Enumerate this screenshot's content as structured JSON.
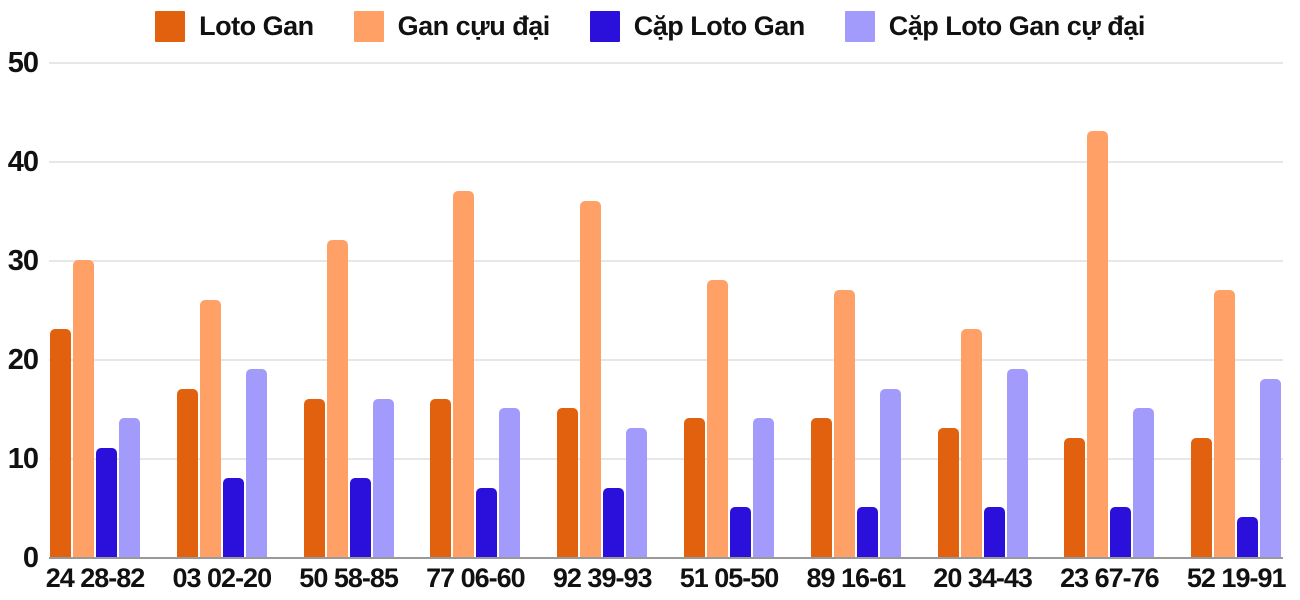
{
  "chart_data": {
    "type": "bar",
    "title": "",
    "categories": [
      "24 28-82",
      "03 02-20",
      "50 58-85",
      "77 06-60",
      "92 39-93",
      "51 05-50",
      "89 16-61",
      "20 34-43",
      "23 67-76",
      "52 19-91"
    ],
    "series": [
      {
        "name": "Loto Gan",
        "color": "#E2610F",
        "values": [
          23,
          17,
          16,
          16,
          15,
          14,
          14,
          13,
          12,
          12
        ]
      },
      {
        "name": "Gan cựu đại",
        "color": "#FFA167",
        "values": [
          30,
          26,
          32,
          37,
          36,
          28,
          27,
          23,
          43,
          27
        ]
      },
      {
        "name": "Cặp Loto Gan",
        "color": "#2B10DB",
        "values": [
          11,
          8,
          8,
          7,
          7,
          5,
          5,
          5,
          5,
          4
        ]
      },
      {
        "name": "Cặp Loto Gan cự đại",
        "color": "#A29BFB",
        "values": [
          14,
          19,
          16,
          15,
          13,
          14,
          17,
          19,
          15,
          18
        ]
      }
    ],
    "ylim": [
      0,
      50
    ],
    "yticks": [
      0,
      10,
      20,
      30,
      40,
      50
    ],
    "grid": true,
    "legend_position": "top",
    "grid_color": "#E7E7E7",
    "baseline_color": "#999999",
    "text_color": "#111111"
  }
}
